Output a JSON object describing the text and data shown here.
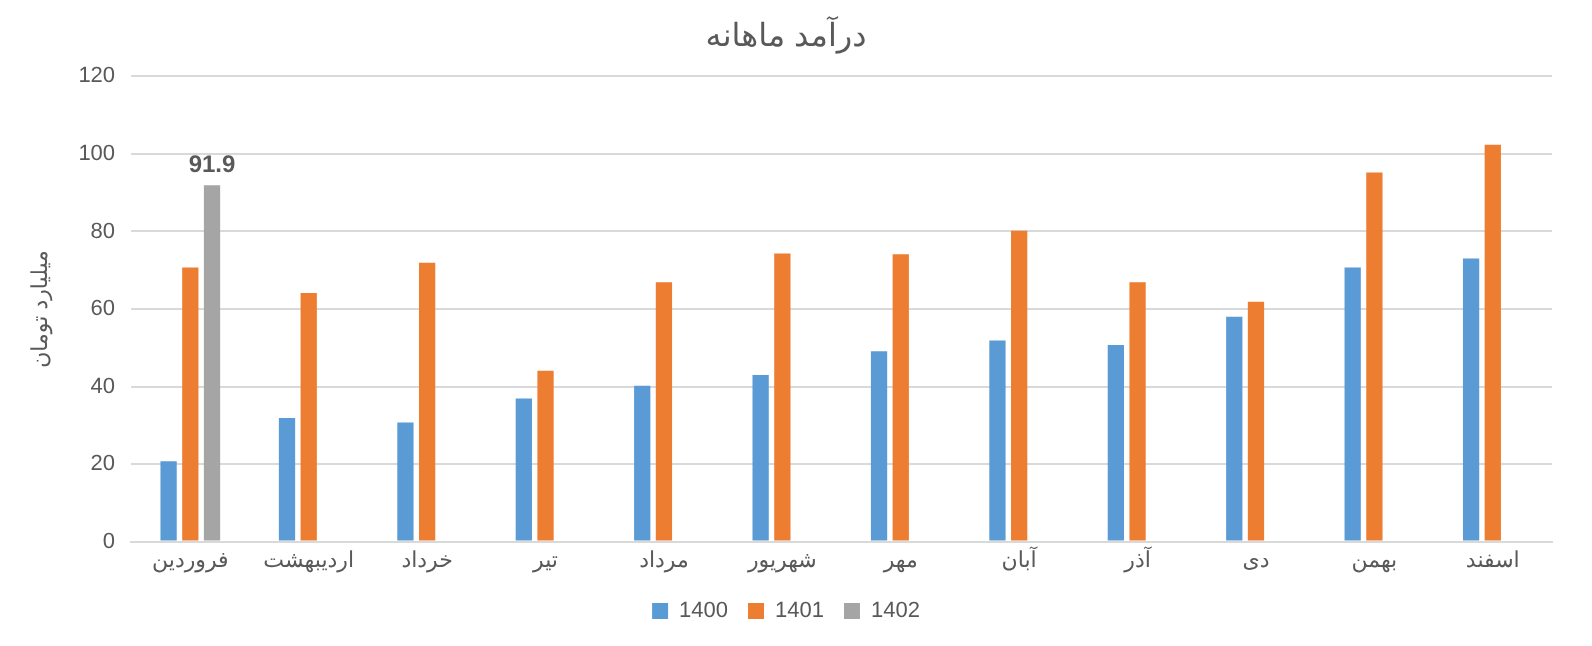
{
  "chart_data": {
    "type": "bar",
    "title": "درآمد ماهانه",
    "ylabel": "میلیارد تومان",
    "categories": [
      "فروردین",
      "اردیبهشت",
      "خرداد",
      "تیر",
      "مرداد",
      "شهریور",
      "مهر",
      "آبان",
      "آذر",
      "دی",
      "بهمن",
      "اسفند"
    ],
    "series": [
      {
        "name": "1400",
        "color": "#5b9bd5",
        "values": [
          20.7,
          31.9,
          30.7,
          36.9,
          40.2,
          43,
          49.1,
          51.9,
          50.7,
          58,
          70.7,
          73
        ]
      },
      {
        "name": "1401",
        "color": "#ed7d31",
        "values": [
          70.7,
          64.1,
          71.9,
          44.1,
          66.9,
          74.3,
          74.1,
          80.2,
          66.9,
          61.9,
          95.2,
          102.4
        ]
      },
      {
        "name": "1402",
        "color": "#a5a5a5",
        "values": [
          91.9,
          null,
          null,
          null,
          null,
          null,
          null,
          null,
          null,
          null,
          null,
          null
        ],
        "value_labels": [
          "91.9",
          null,
          null,
          null,
          null,
          null,
          null,
          null,
          null,
          null,
          null,
          null
        ]
      }
    ],
    "ylim": [
      0,
      120
    ],
    "yticks": [
      0,
      20,
      40,
      60,
      80,
      100,
      120
    ],
    "grid": "y",
    "legend": "bottom"
  }
}
